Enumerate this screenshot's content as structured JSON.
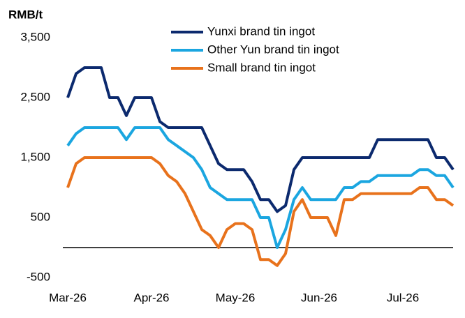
{
  "chart_data": {
    "type": "line",
    "y_label": "RMB/t",
    "categories": [
      "Mar-26",
      null,
      null,
      null,
      null,
      null,
      null,
      null,
      null,
      null,
      "Apr-26",
      null,
      null,
      null,
      null,
      null,
      null,
      null,
      null,
      null,
      "May-26",
      null,
      null,
      null,
      null,
      null,
      null,
      null,
      null,
      null,
      "Jun-26",
      null,
      null,
      null,
      null,
      null,
      null,
      null,
      null,
      null,
      "Jul-26",
      null,
      null,
      null,
      null,
      null,
      null
    ],
    "series": [
      {
        "name": "Yunxi brand tin ingot",
        "color": "#0c2a6e",
        "values": [
          2500,
          2900,
          3000,
          3000,
          3000,
          2500,
          2500,
          2200,
          2500,
          2500,
          2500,
          2100,
          2000,
          2000,
          2000,
          2000,
          2000,
          1700,
          1400,
          1300,
          1300,
          1300,
          1100,
          800,
          800,
          600,
          700,
          1300,
          1500,
          1500,
          1500,
          1500,
          1500,
          1500,
          1500,
          1500,
          1500,
          1800,
          1800,
          1800,
          1800,
          1800,
          1800,
          1800,
          1500,
          1500,
          1300
        ]
      },
      {
        "name": "Other Yun brand tin ingot",
        "color": "#1ba6e0",
        "values": [
          1700,
          1900,
          2000,
          2000,
          2000,
          2000,
          2000,
          1800,
          2000,
          2000,
          2000,
          2000,
          1800,
          1700,
          1600,
          1500,
          1300,
          1000,
          900,
          800,
          800,
          800,
          800,
          500,
          500,
          0,
          300,
          800,
          1000,
          800,
          800,
          800,
          800,
          1000,
          1000,
          1100,
          1100,
          1200,
          1200,
          1200,
          1200,
          1200,
          1300,
          1300,
          1200,
          1200,
          1000
        ]
      },
      {
        "name": "Small brand tin ingot",
        "color": "#e8721c",
        "values": [
          1000,
          1400,
          1500,
          1500,
          1500,
          1500,
          1500,
          1500,
          1500,
          1500,
          1500,
          1400,
          1200,
          1100,
          900,
          600,
          300,
          200,
          0,
          300,
          400,
          400,
          300,
          -200,
          -200,
          -300,
          -100,
          600,
          800,
          500,
          500,
          500,
          200,
          800,
          800,
          900,
          900,
          900,
          900,
          900,
          900,
          900,
          1000,
          1000,
          800,
          800,
          700
        ]
      }
    ],
    "ylim": [
      -500,
      3500
    ],
    "yticks": [
      -500,
      500,
      {
        "value": 1500,
        "label": "1,500"
      },
      {
        "value": 2500,
        "label": "2,500"
      },
      {
        "value": 3500,
        "label": "3,500"
      }
    ],
    "legend": "top"
  }
}
